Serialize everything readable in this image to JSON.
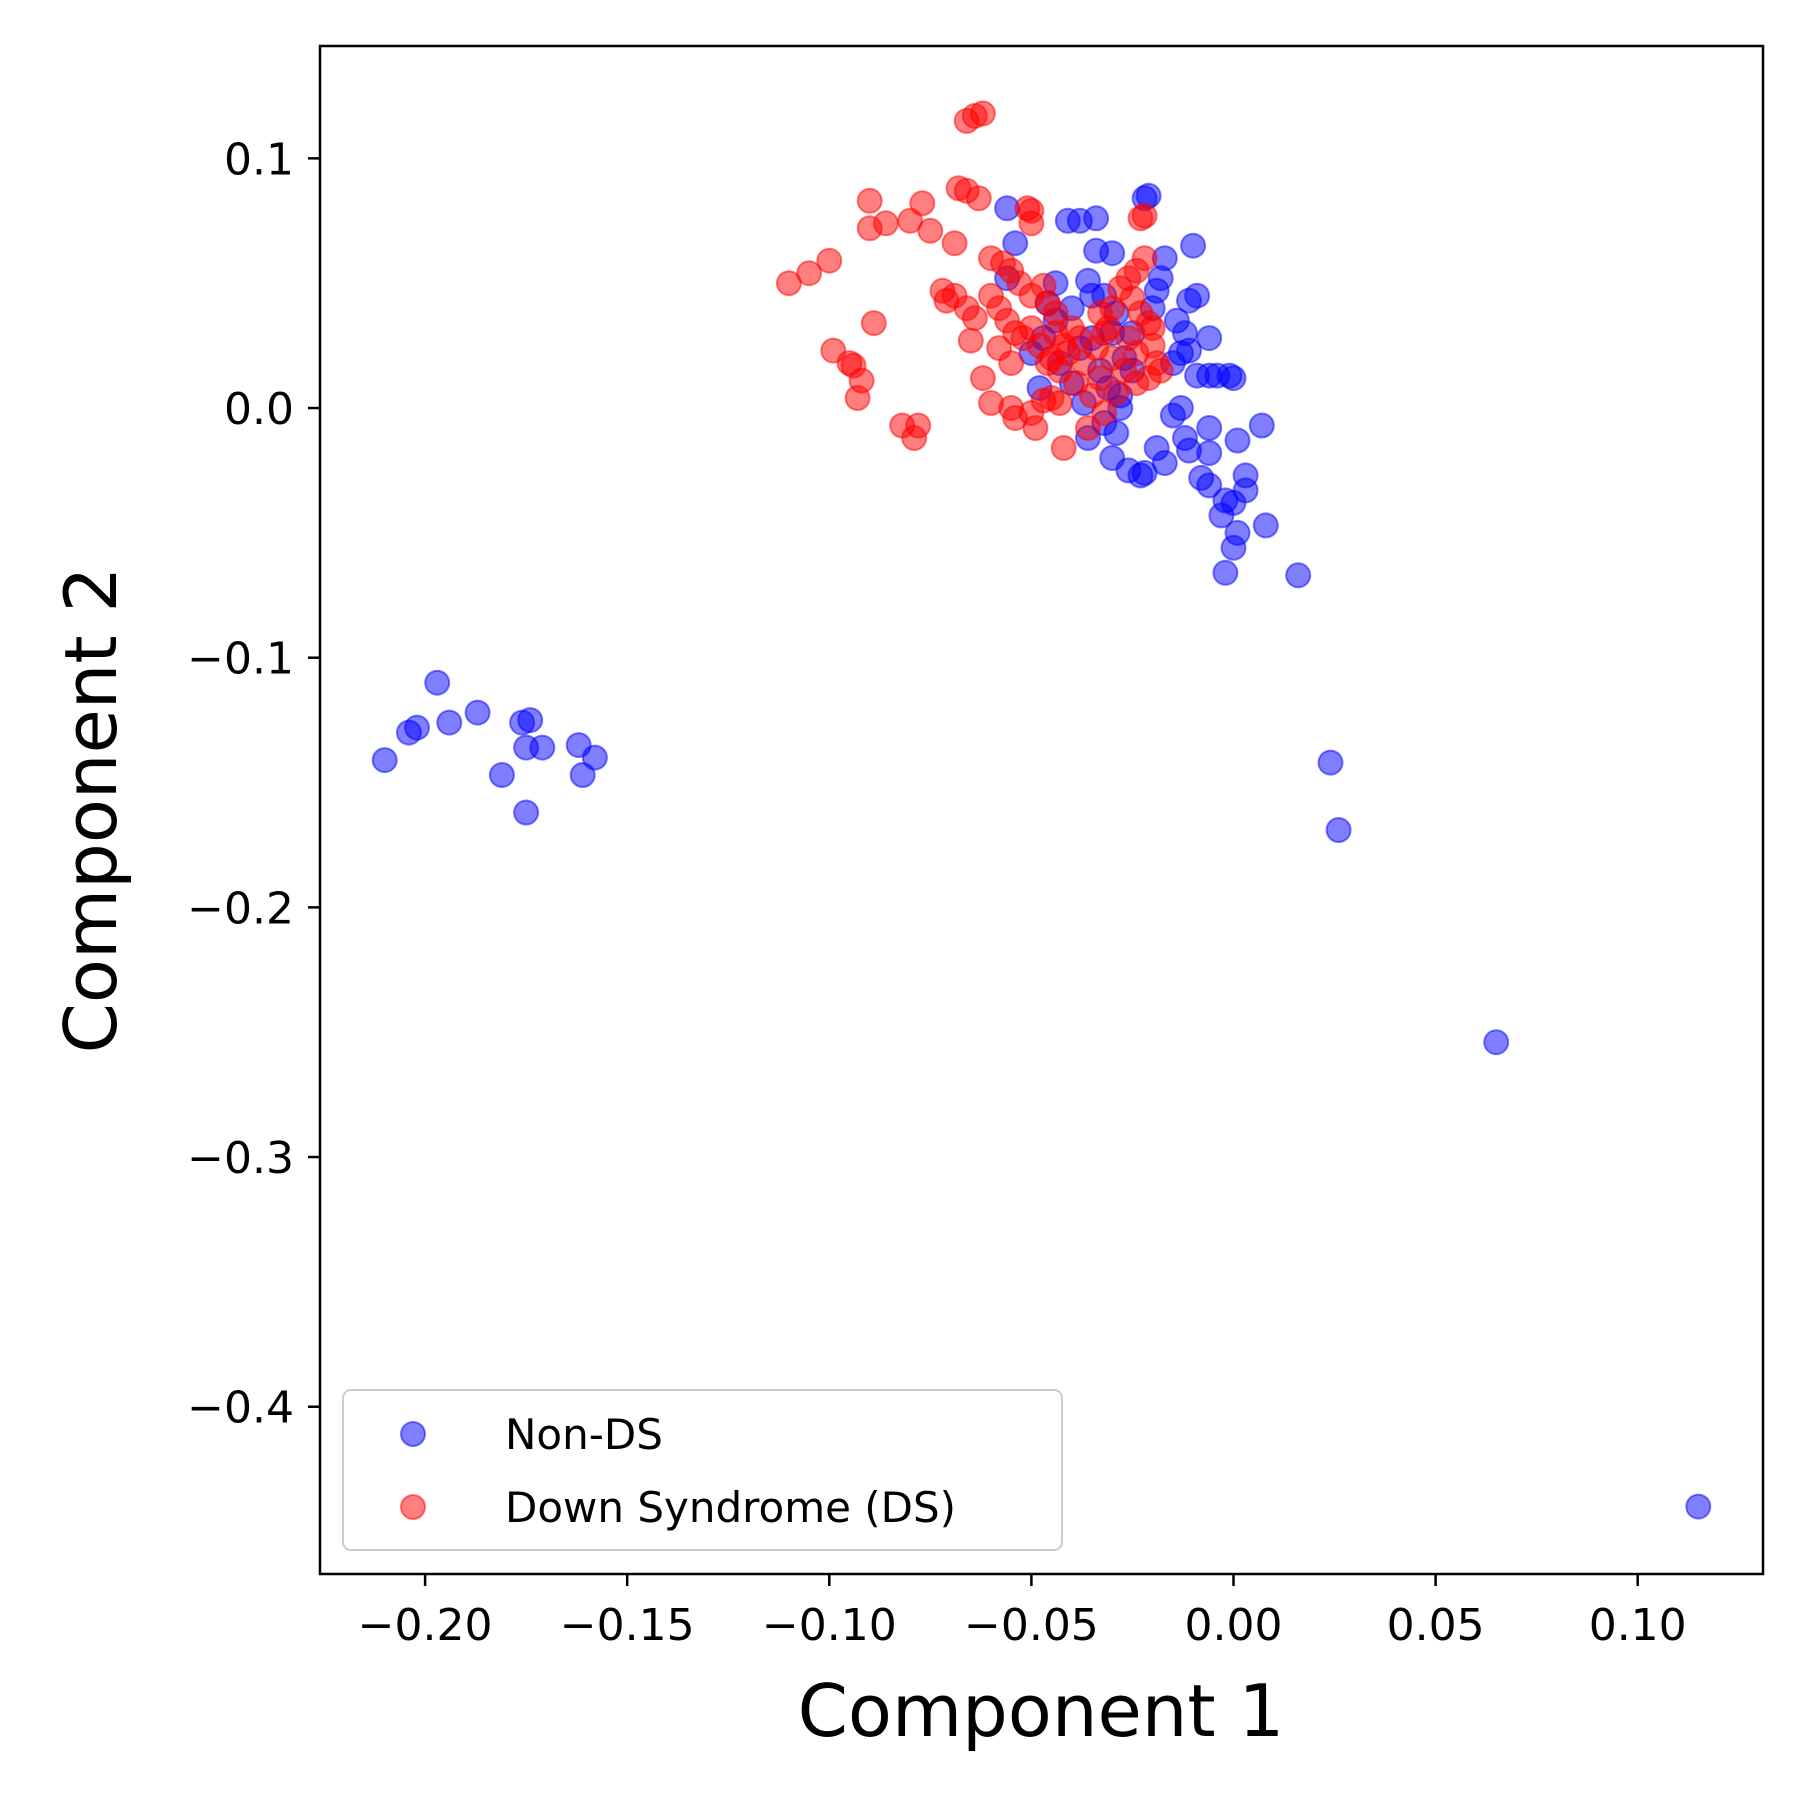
{
  "chart_data": {
    "type": "scatter",
    "title": "",
    "xlabel": "Component 1",
    "ylabel": "Component 2",
    "xlim": [
      -0.226,
      0.131
    ],
    "ylim": [
      -0.467,
      0.145
    ],
    "xticks": [
      -0.2,
      -0.15,
      -0.1,
      -0.05,
      0.0,
      0.05,
      0.1
    ],
    "xtick_labels": [
      "−0.20",
      "−0.15",
      "−0.10",
      "−0.05",
      "0.00",
      "0.05",
      "0.10"
    ],
    "yticks": [
      0.1,
      0.0,
      -0.1,
      -0.2,
      -0.3,
      -0.4
    ],
    "ytick_labels": [
      "0.1",
      "0.0",
      "−0.1",
      "−0.2",
      "−0.3",
      "−0.4"
    ],
    "grid": false,
    "legend_position": "bottom-left",
    "series": [
      {
        "name": "Non-DS",
        "color": "#0000ff",
        "opacity": 0.5,
        "points": [
          [
            -0.21,
            -0.141
          ],
          [
            -0.204,
            -0.13
          ],
          [
            -0.202,
            -0.128
          ],
          [
            -0.197,
            -0.11
          ],
          [
            -0.194,
            -0.126
          ],
          [
            -0.187,
            -0.122
          ],
          [
            -0.181,
            -0.147
          ],
          [
            -0.176,
            -0.126
          ],
          [
            -0.174,
            -0.125
          ],
          [
            -0.175,
            -0.136
          ],
          [
            -0.171,
            -0.136
          ],
          [
            -0.175,
            -0.162
          ],
          [
            -0.162,
            -0.135
          ],
          [
            -0.161,
            -0.147
          ],
          [
            -0.158,
            -0.14
          ],
          [
            0.024,
            -0.142
          ],
          [
            0.026,
            -0.169
          ],
          [
            0.065,
            -0.254
          ],
          [
            0.115,
            -0.44
          ],
          [
            0.016,
            -0.067
          ],
          [
            -0.056,
            0.08
          ],
          [
            -0.054,
            0.066
          ],
          [
            -0.056,
            0.052
          ],
          [
            -0.041,
            0.075
          ],
          [
            -0.038,
            0.075
          ],
          [
            -0.034,
            0.076
          ],
          [
            -0.034,
            0.063
          ],
          [
            -0.03,
            0.062
          ],
          [
            -0.022,
            0.084
          ],
          [
            -0.021,
            0.085
          ],
          [
            -0.036,
            0.051
          ],
          [
            -0.035,
            0.045
          ],
          [
            -0.04,
            0.04
          ],
          [
            -0.044,
            0.035
          ],
          [
            -0.047,
            0.028
          ],
          [
            -0.05,
            0.022
          ],
          [
            -0.043,
            0.018
          ],
          [
            -0.04,
            0.01
          ],
          [
            -0.037,
            0.002
          ],
          [
            -0.036,
            -0.012
          ],
          [
            -0.032,
            -0.006
          ],
          [
            -0.029,
            -0.01
          ],
          [
            -0.028,
            0.0
          ],
          [
            -0.03,
            -0.02
          ],
          [
            -0.026,
            -0.025
          ],
          [
            -0.023,
            -0.027
          ],
          [
            -0.022,
            -0.026
          ],
          [
            -0.019,
            -0.016
          ],
          [
            -0.017,
            -0.022
          ],
          [
            -0.015,
            -0.003
          ],
          [
            -0.013,
            0.0
          ],
          [
            -0.012,
            -0.012
          ],
          [
            -0.011,
            -0.017
          ],
          [
            -0.008,
            -0.028
          ],
          [
            -0.006,
            -0.031
          ],
          [
            -0.006,
            -0.008
          ],
          [
            -0.006,
            -0.018
          ],
          [
            -0.003,
            -0.043
          ],
          [
            -0.002,
            -0.037
          ],
          [
            0.0,
            -0.038
          ],
          [
            0.001,
            -0.05
          ],
          [
            0.0,
            -0.056
          ],
          [
            -0.002,
            -0.066
          ],
          [
            0.003,
            -0.033
          ],
          [
            0.003,
            -0.027
          ],
          [
            0.001,
            -0.013
          ],
          [
            0.007,
            -0.007
          ],
          [
            0.008,
            -0.047
          ],
          [
            -0.01,
            0.065
          ],
          [
            -0.017,
            0.06
          ],
          [
            -0.018,
            0.052
          ],
          [
            -0.019,
            0.047
          ],
          [
            -0.011,
            0.043
          ],
          [
            -0.009,
            0.045
          ],
          [
            -0.012,
            0.03
          ],
          [
            -0.011,
            0.023
          ],
          [
            -0.006,
            0.028
          ],
          [
            -0.009,
            0.013
          ],
          [
            -0.006,
            0.013
          ],
          [
            -0.004,
            0.013
          ],
          [
            -0.001,
            0.013
          ],
          [
            0.0,
            0.012
          ],
          [
            -0.015,
            0.018
          ],
          [
            -0.013,
            0.022
          ],
          [
            -0.014,
            0.035
          ],
          [
            -0.02,
            0.04
          ],
          [
            -0.025,
            0.03
          ],
          [
            -0.027,
            0.02
          ],
          [
            -0.025,
            0.015
          ],
          [
            -0.028,
            0.005
          ],
          [
            -0.031,
            0.008
          ],
          [
            -0.033,
            0.015
          ],
          [
            -0.03,
            0.03
          ],
          [
            -0.032,
            0.045
          ],
          [
            -0.044,
            0.05
          ],
          [
            -0.046,
            0.042
          ],
          [
            -0.048,
            0.008
          ],
          [
            -0.038,
            0.024
          ],
          [
            -0.035,
            0.028
          ],
          [
            -0.029,
            0.038
          ]
        ]
      },
      {
        "name": "Down Syndrome (DS)",
        "color": "#ff0000",
        "opacity": 0.5,
        "points": [
          [
            -0.066,
            0.115
          ],
          [
            -0.064,
            0.117
          ],
          [
            -0.062,
            0.118
          ],
          [
            -0.068,
            0.088
          ],
          [
            -0.066,
            0.087
          ],
          [
            -0.063,
            0.084
          ],
          [
            -0.09,
            0.083
          ],
          [
            -0.09,
            0.072
          ],
          [
            -0.086,
            0.074
          ],
          [
            -0.08,
            0.075
          ],
          [
            -0.077,
            0.082
          ],
          [
            -0.075,
            0.071
          ],
          [
            -0.069,
            0.066
          ],
          [
            -0.1,
            0.059
          ],
          [
            -0.105,
            0.054
          ],
          [
            -0.11,
            0.05
          ],
          [
            -0.089,
            0.034
          ],
          [
            -0.099,
            0.023
          ],
          [
            -0.095,
            0.018
          ],
          [
            -0.094,
            0.017
          ],
          [
            -0.092,
            0.011
          ],
          [
            -0.093,
            0.004
          ],
          [
            -0.082,
            -0.007
          ],
          [
            -0.079,
            -0.012
          ],
          [
            -0.078,
            -0.007
          ],
          [
            -0.072,
            0.047
          ],
          [
            -0.071,
            0.043
          ],
          [
            -0.069,
            0.045
          ],
          [
            -0.066,
            0.04
          ],
          [
            -0.064,
            0.036
          ],
          [
            -0.065,
            0.027
          ],
          [
            -0.062,
            0.012
          ],
          [
            -0.06,
            0.002
          ],
          [
            -0.055,
            0.0
          ],
          [
            -0.054,
            -0.004
          ],
          [
            -0.05,
            -0.002
          ],
          [
            -0.049,
            -0.008
          ],
          [
            -0.047,
            0.003
          ],
          [
            -0.045,
            0.004
          ],
          [
            -0.043,
            0.002
          ],
          [
            -0.042,
            -0.016
          ],
          [
            -0.051,
            0.08
          ],
          [
            -0.05,
            0.079
          ],
          [
            -0.05,
            0.074
          ],
          [
            -0.06,
            0.06
          ],
          [
            -0.057,
            0.058
          ],
          [
            -0.055,
            0.055
          ],
          [
            -0.053,
            0.05
          ],
          [
            -0.05,
            0.045
          ],
          [
            -0.047,
            0.049
          ],
          [
            -0.046,
            0.042
          ],
          [
            -0.044,
            0.038
          ],
          [
            -0.06,
            0.045
          ],
          [
            -0.058,
            0.04
          ],
          [
            -0.056,
            0.035
          ],
          [
            -0.054,
            0.03
          ],
          [
            -0.058,
            0.024
          ],
          [
            -0.055,
            0.018
          ],
          [
            -0.052,
            0.028
          ],
          [
            -0.05,
            0.032
          ],
          [
            -0.048,
            0.025
          ],
          [
            -0.045,
            0.02
          ],
          [
            -0.043,
            0.015
          ],
          [
            -0.041,
            0.022
          ],
          [
            -0.039,
            0.01
          ],
          [
            -0.037,
            0.018
          ],
          [
            -0.035,
            0.005
          ],
          [
            -0.033,
            0.012
          ],
          [
            -0.032,
            -0.002
          ],
          [
            -0.03,
            0.02
          ],
          [
            -0.036,
            -0.008
          ],
          [
            -0.034,
            0.024
          ],
          [
            -0.032,
            0.03
          ],
          [
            -0.03,
            0.04
          ],
          [
            -0.028,
            0.048
          ],
          [
            -0.026,
            0.052
          ],
          [
            -0.024,
            0.055
          ],
          [
            -0.022,
            0.06
          ],
          [
            -0.025,
            0.044
          ],
          [
            -0.023,
            0.038
          ],
          [
            -0.021,
            0.034
          ],
          [
            -0.02,
            0.025
          ],
          [
            -0.019,
            0.018
          ],
          [
            -0.021,
            0.012
          ],
          [
            -0.024,
            0.01
          ],
          [
            -0.027,
            0.015
          ],
          [
            -0.029,
            0.006
          ],
          [
            -0.031,
            0.032
          ],
          [
            -0.033,
            0.038
          ],
          [
            -0.022,
            0.077
          ],
          [
            -0.023,
            0.076
          ],
          [
            -0.038,
            0.028
          ],
          [
            -0.04,
            0.032
          ],
          [
            -0.042,
            0.025
          ],
          [
            -0.044,
            0.03
          ],
          [
            -0.046,
            0.018
          ],
          [
            -0.026,
            0.028
          ],
          [
            -0.024,
            0.022
          ],
          [
            -0.02,
            0.032
          ],
          [
            -0.018,
            0.015
          ]
        ]
      }
    ]
  }
}
